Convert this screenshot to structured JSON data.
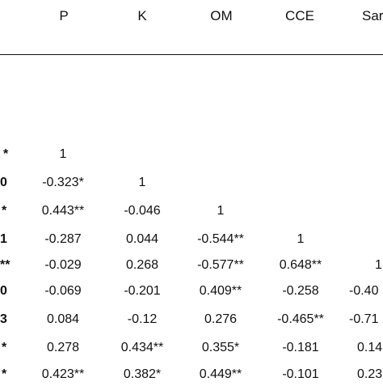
{
  "table": {
    "columns": [
      "P",
      "K",
      "OM",
      "CCE",
      "Sar"
    ],
    "rows": [
      {
        "left": "*",
        "cells": [
          "1",
          "",
          "",
          "",
          ""
        ]
      },
      {
        "left": "0",
        "cells": [
          "-0.323*",
          "1",
          "",
          "",
          ""
        ]
      },
      {
        "left": "*",
        "cells": [
          "0.443**",
          "-0.046",
          "1",
          "",
          ""
        ]
      },
      {
        "left": "1",
        "cells": [
          "-0.287",
          "0.044",
          "-0.544**",
          "1",
          ""
        ]
      },
      {
        "left": "**",
        "cells": [
          "-0.029",
          "0.268",
          "-0.577**",
          "0.648**",
          "1"
        ]
      },
      {
        "left": "0",
        "cells": [
          "-0.069",
          "-0.201",
          "0.409**",
          "-0.258",
          "-0.40"
        ]
      },
      {
        "left": "3",
        "cells": [
          "0.084",
          "-0.12",
          "0.276",
          "-0.465**",
          "-0.71"
        ]
      },
      {
        "left": "*",
        "cells": [
          "0.278",
          "0.434**",
          "0.355*",
          "-0.181",
          "0.14"
        ]
      },
      {
        "left": "*",
        "cells": [
          "0.423**",
          "0.382*",
          "0.449**",
          "-0.101",
          "0.23"
        ]
      }
    ]
  }
}
